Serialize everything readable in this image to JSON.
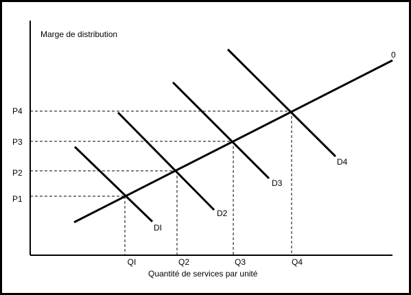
{
  "chart_data": {
    "type": "line",
    "ylabel": "Marge de distribution",
    "xlabel": "Quantité de services par unité",
    "x_ticks": [
      "QI",
      "Q2",
      "Q3",
      "Q4"
    ],
    "y_ticks": [
      "P1",
      "P2",
      "P3",
      "P4"
    ],
    "supply": {
      "name": "0"
    },
    "demand": [
      {
        "name": "DI"
      },
      {
        "name": "D2"
      },
      {
        "name": "D3"
      },
      {
        "name": "D4"
      }
    ],
    "equilibria": [
      {
        "q": "QI",
        "p": "P1"
      },
      {
        "q": "Q2",
        "p": "P2"
      },
      {
        "q": "Q3",
        "p": "P3"
      },
      {
        "q": "Q4",
        "p": "P4"
      }
    ],
    "grid": false
  }
}
